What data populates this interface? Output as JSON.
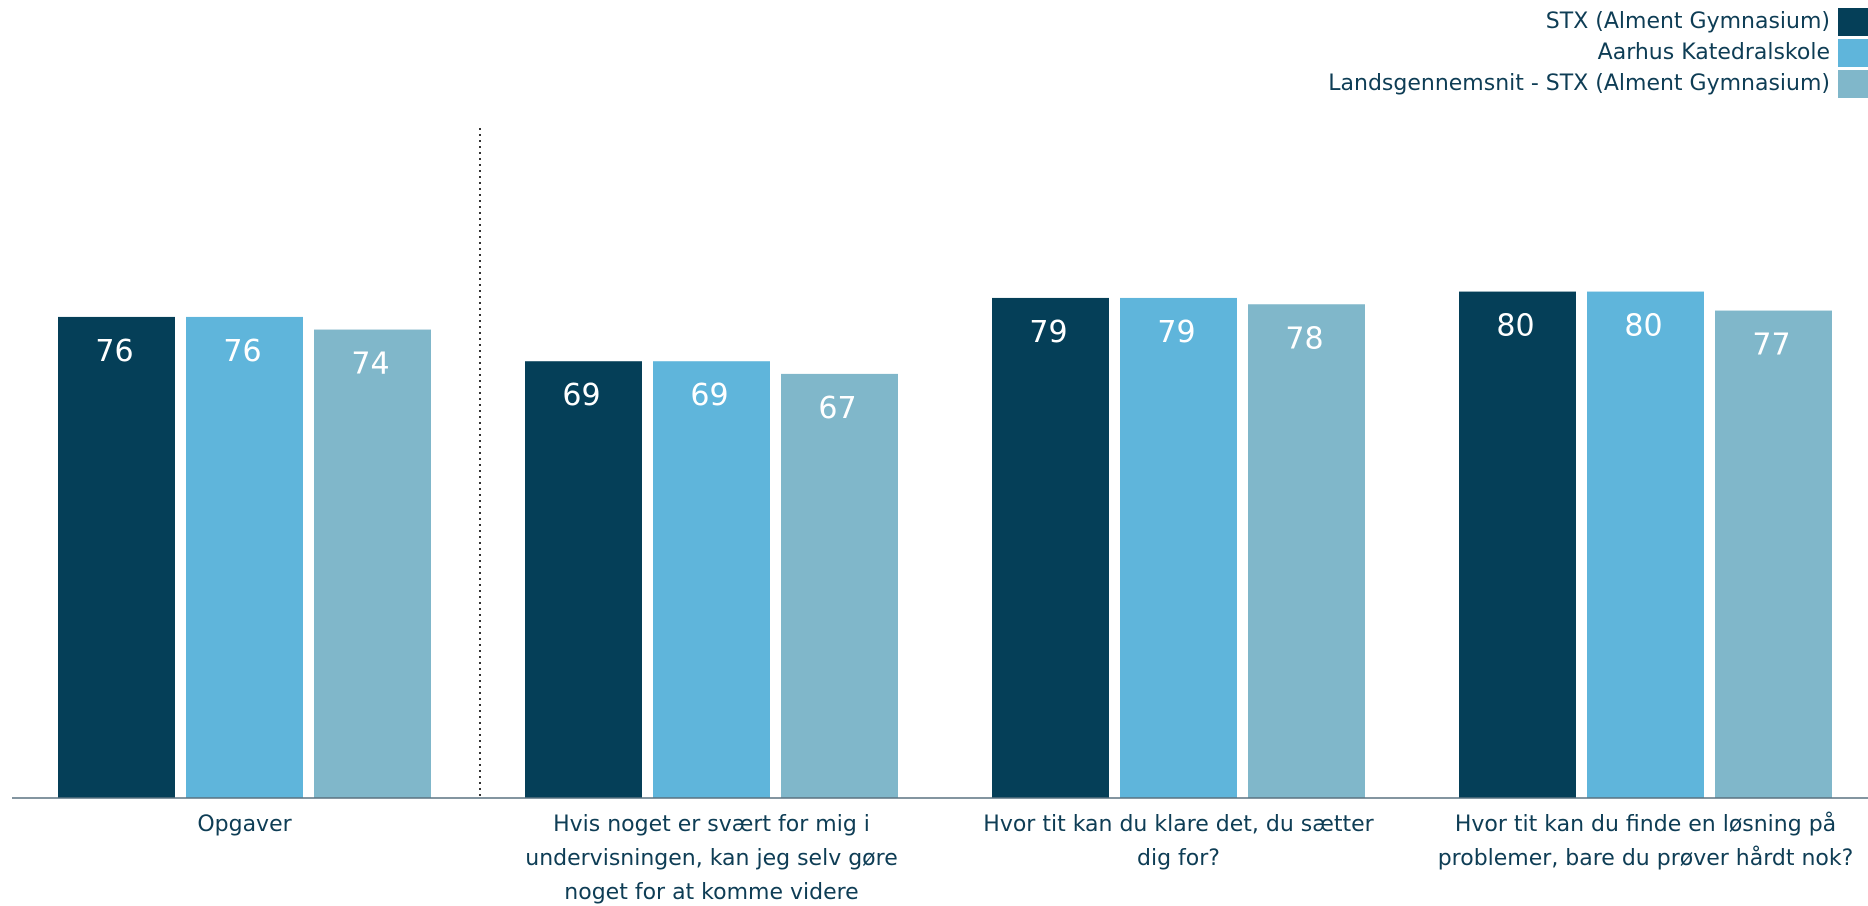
{
  "chart_data": {
    "type": "bar",
    "categories": [
      "Opgaver",
      "Hvis noget er svært for mig i undervisningen, kan jeg selv gøre noget for at komme videre",
      "Hvor tit kan du klare det, du sætter dig for?",
      "Hvor tit kan du finde en løsning på problemer, bare du prøver hårdt nok?"
    ],
    "category_lines": [
      [
        "Opgaver"
      ],
      [
        "Hvis noget er svært for mig i",
        "undervisningen, kan jeg selv gøre",
        "noget for at komme videre"
      ],
      [
        "Hvor tit kan du klare det, du sætter",
        "dig for?"
      ],
      [
        "Hvor tit kan du finde en løsning på",
        "problemer, bare du prøver hårdt nok?"
      ]
    ],
    "series": [
      {
        "name": "STX (Alment Gymnasium)",
        "color": "#053f58",
        "values": [
          76,
          69,
          79,
          80
        ]
      },
      {
        "name": "Aarhus Katedralskole",
        "color": "#5fb5db",
        "values": [
          76,
          69,
          79,
          80
        ]
      },
      {
        "name": "Landsgennemsnit - STX (Alment Gymnasium)",
        "color": "#80b7ca",
        "values": [
          74,
          67,
          78,
          77
        ]
      }
    ],
    "title": "",
    "xlabel": "",
    "ylabel": "",
    "ylim": [
      0,
      100
    ],
    "grid": false,
    "legend_position": "top-right",
    "separator_after_category": 0
  }
}
